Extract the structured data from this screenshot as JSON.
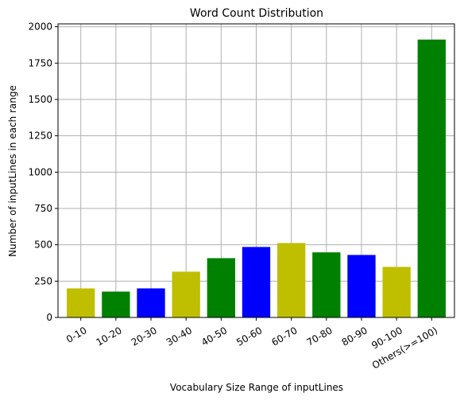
{
  "chart_data": {
    "type": "bar",
    "title": "Word Count Distribution",
    "xlabel": "Vocabulary Size Range of inputLines",
    "ylabel": "Number of inputLines in each range",
    "categories": [
      "0-10",
      "10-20",
      "20-30",
      "30-40",
      "40-50",
      "50-60",
      "60-70",
      "70-80",
      "80-90",
      "90-100",
      "Others(>=100)"
    ],
    "values": [
      200,
      178,
      200,
      315,
      408,
      485,
      512,
      448,
      430,
      348,
      1912
    ],
    "bar_colors": [
      "#bfbf00",
      "#008000",
      "#0000ff",
      "#bfbf00",
      "#008000",
      "#0000ff",
      "#bfbf00",
      "#008000",
      "#0000ff",
      "#bfbf00",
      "#008000"
    ],
    "yticks": [
      0,
      250,
      500,
      750,
      1000,
      1250,
      1500,
      1750,
      2000
    ],
    "ylim": [
      0,
      2020
    ],
    "grid": true
  }
}
